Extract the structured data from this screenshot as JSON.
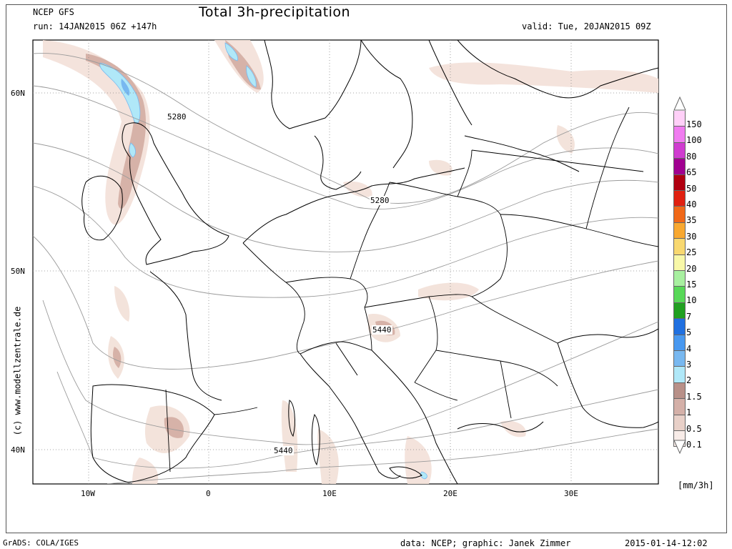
{
  "header": {
    "model": "NCEP GFS",
    "run": "run: 14JAN2015 06Z +147h",
    "title": "Total 3h-precipitation",
    "valid": "valid: Tue, 20JAN2015 09Z"
  },
  "map": {
    "lat_labels": [
      "60N",
      "50N",
      "40N"
    ],
    "lon_labels": [
      "10W",
      "0",
      "10E",
      "20E",
      "30E"
    ],
    "contour_labels": [
      "5280",
      "5280",
      "5440",
      "5440"
    ],
    "side_credit": "(c) www.modellzentrale.de"
  },
  "legend": {
    "unit": "[mm/3h]",
    "levels": [
      {
        "label": "150",
        "color": "#ffd0f8"
      },
      {
        "label": "100",
        "color": "#f07cf0"
      },
      {
        "label": "80",
        "color": "#d03cd0"
      },
      {
        "label": "65",
        "color": "#a00090"
      },
      {
        "label": "50",
        "color": "#b00010"
      },
      {
        "label": "40",
        "color": "#e02010"
      },
      {
        "label": "35",
        "color": "#f06818"
      },
      {
        "label": "30",
        "color": "#f8a830"
      },
      {
        "label": "25",
        "color": "#f8d870"
      },
      {
        "label": "20",
        "color": "#f8f8a8"
      },
      {
        "label": "15",
        "color": "#a8f0a0"
      },
      {
        "label": "10",
        "color": "#58d858"
      },
      {
        "label": "7",
        "color": "#20a020"
      },
      {
        "label": "5",
        "color": "#2070e0"
      },
      {
        "label": "4",
        "color": "#4898f0"
      },
      {
        "label": "3",
        "color": "#78b8f0"
      },
      {
        "label": "2",
        "color": "#b0e8f8"
      },
      {
        "label": "1.5",
        "color": "#b89088"
      },
      {
        "label": "1",
        "color": "#d4b0a8"
      },
      {
        "label": "0.5",
        "color": "#e8d0c8"
      },
      {
        "label": "0.1",
        "color": "#f8ece8"
      }
    ]
  },
  "footer": {
    "grads": "GrADS: COLA/IGES",
    "data": "data: NCEP; graphic: Janek Zimmer",
    "timestamp": "2015-01-14-12:02"
  }
}
